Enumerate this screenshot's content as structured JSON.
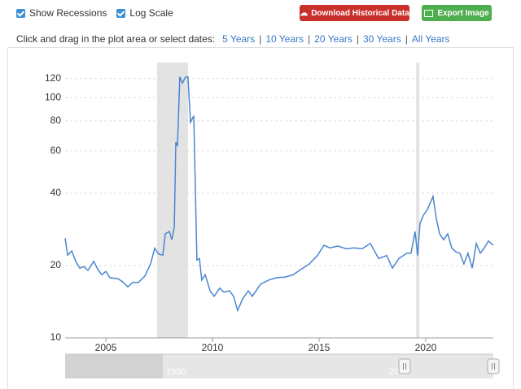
{
  "toolbar": {
    "show_recessions": "Show Recessions",
    "log_scale": "Log Scale",
    "download": "Download Historical Data",
    "export": "Export Image"
  },
  "range_bar": {
    "prompt": "Click and drag in the plot area or select dates:",
    "separator": "|",
    "links": [
      "5 Years",
      "10 Years",
      "20 Years",
      "30 Years",
      "All Years"
    ]
  },
  "navigator": {
    "labels": [
      "1950",
      "2000"
    ]
  },
  "chart_data": {
    "type": "line",
    "log": true,
    "grid": true,
    "color": "#4a86d0",
    "recession_color": "#e3e3e3",
    "recessions": [
      [
        2007.4,
        2008.85
      ],
      [
        2019.55,
        2019.7
      ]
    ],
    "xlim": [
      2003.09,
      2023.17
    ],
    "xticks": [
      2005,
      2010,
      2015,
      2020
    ],
    "ylim": [
      10,
      140
    ],
    "yticks": [
      10,
      20,
      40,
      60,
      80,
      100,
      120
    ],
    "x": [
      2003.09,
      2003.21,
      2003.4,
      2003.59,
      2003.78,
      2003.97,
      2004.16,
      2004.43,
      2004.62,
      2004.81,
      2005.0,
      2005.19,
      2005.57,
      2005.76,
      2006.03,
      2006.26,
      2006.53,
      2006.83,
      2007.1,
      2007.29,
      2007.48,
      2007.67,
      2007.79,
      2007.98,
      2008.09,
      2008.21,
      2008.28,
      2008.36,
      2008.47,
      2008.59,
      2008.74,
      2008.85,
      2008.97,
      2009.12,
      2009.27,
      2009.39,
      2009.5,
      2009.66,
      2009.89,
      2010.08,
      2010.34,
      2010.53,
      2010.8,
      2010.99,
      2011.18,
      2011.41,
      2011.68,
      2011.87,
      2012.25,
      2012.63,
      2013.02,
      2013.4,
      2013.78,
      2014.16,
      2014.54,
      2014.92,
      2015.23,
      2015.5,
      2015.88,
      2016.26,
      2016.64,
      2017.02,
      2017.4,
      2017.79,
      2018.17,
      2018.44,
      2018.74,
      2019.12,
      2019.31,
      2019.5,
      2019.62,
      2019.73,
      2019.89,
      2020.08,
      2020.34,
      2020.5,
      2020.65,
      2020.84,
      2021.03,
      2021.22,
      2021.41,
      2021.6,
      2021.79,
      2021.98,
      2022.18,
      2022.37,
      2022.56,
      2022.75,
      2022.94,
      2023.17
    ],
    "values": [
      26.0,
      22.1,
      23.0,
      20.8,
      19.5,
      19.8,
      19.1,
      20.8,
      19.3,
      18.3,
      18.9,
      17.8,
      17.6,
      17.2,
      16.3,
      17.0,
      17.0,
      18.1,
      20.3,
      23.6,
      22.3,
      22.1,
      27.1,
      27.7,
      25.6,
      28.9,
      65.3,
      62.8,
      122,
      115,
      122,
      122,
      79,
      84,
      21.1,
      21.4,
      17.4,
      18.3,
      15.7,
      14.9,
      16.1,
      15.5,
      15.7,
      14.9,
      13.0,
      14.5,
      15.7,
      14.9,
      16.7,
      17.4,
      17.8,
      17.9,
      18.3,
      19.3,
      20.3,
      22.0,
      24.3,
      23.7,
      24.1,
      23.5,
      23.7,
      23.5,
      24.7,
      21.4,
      22.0,
      19.5,
      21.4,
      22.5,
      22.5,
      27.7,
      22.0,
      29.9,
      32.4,
      34.2,
      38.8,
      31.2,
      27.1,
      25.6,
      27.1,
      23.7,
      22.8,
      22.5,
      20.3,
      22.5,
      19.5,
      24.7,
      22.5,
      23.7,
      25.3,
      24.3
    ]
  }
}
